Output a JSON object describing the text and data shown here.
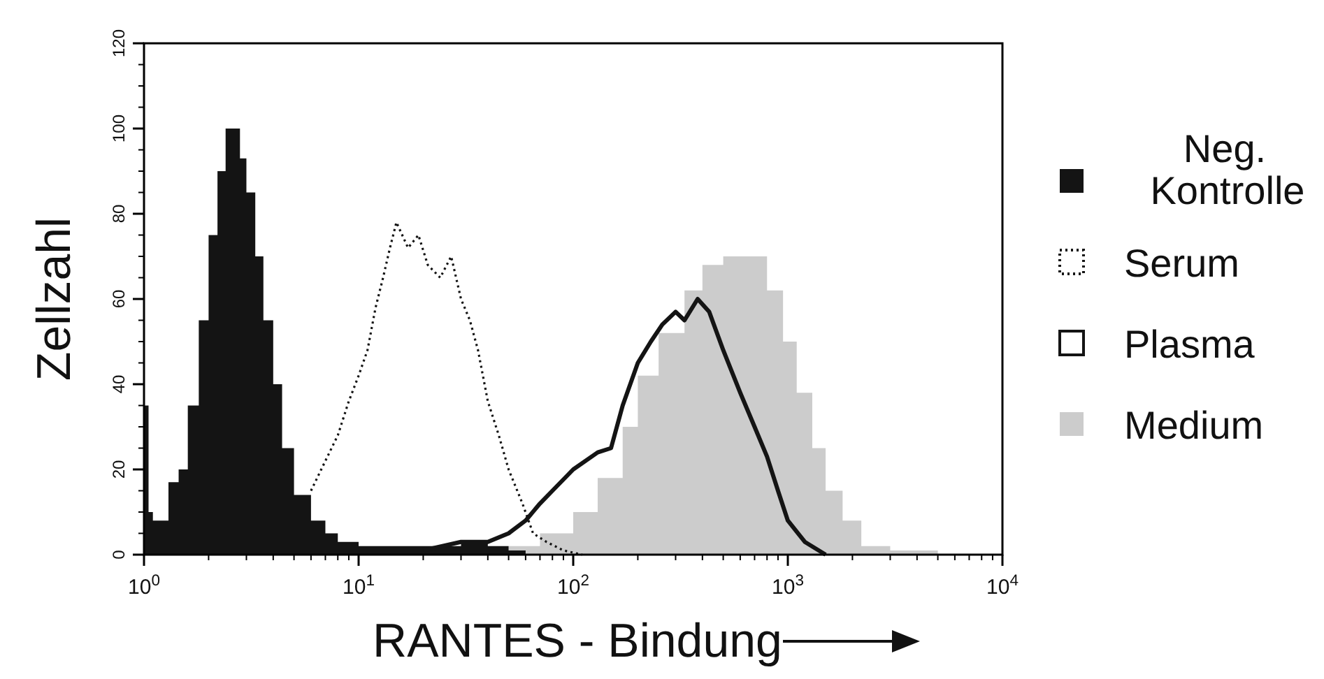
{
  "chart_data": {
    "type": "area",
    "xlabel": "RANTES - Bindung",
    "ylabel": "Zellzahl",
    "log": "x",
    "xlim": [
      1,
      10000
    ],
    "ylim": [
      0,
      120
    ],
    "xticks": [
      {
        "value": 1,
        "label": "10$^{0}$"
      },
      {
        "value": 10,
        "label": "10$^{1}$"
      },
      {
        "value": 100,
        "label": "10$^{2}$"
      },
      {
        "value": 1000,
        "label": "10$^{3}$"
      },
      {
        "value": 10000,
        "label": "10$^{4}$"
      }
    ],
    "yticks": [
      0,
      20,
      40,
      60,
      80,
      100,
      120
    ],
    "legend": "right",
    "grid": false,
    "series": [
      {
        "name": "Neg. Kontrolle",
        "type": "area",
        "color": "#141414",
        "x": [
          1,
          1.05,
          1.1,
          1.3,
          1.45,
          1.6,
          1.8,
          2.0,
          2.2,
          2.4,
          2.6,
          2.8,
          3.0,
          3.3,
          3.6,
          4.0,
          4.4,
          5,
          6,
          7,
          8,
          10,
          15,
          20,
          30,
          40,
          50,
          60
        ],
        "values": [
          35,
          10,
          8,
          17,
          20,
          35,
          55,
          75,
          90,
          100,
          100,
          93,
          85,
          70,
          55,
          40,
          25,
          14,
          8,
          5,
          3,
          2,
          2,
          2,
          3,
          2,
          1,
          0
        ]
      },
      {
        "name": "Serum",
        "type": "line",
        "line_style": "dotted",
        "color": "#141414",
        "x": [
          6,
          7,
          8,
          9,
          10,
          11,
          12,
          13,
          14,
          15,
          17,
          19,
          21,
          24,
          27,
          30,
          33,
          36,
          40,
          45,
          50,
          58,
          65,
          75,
          90,
          110
        ],
        "values": [
          15,
          22,
          28,
          36,
          42,
          48,
          58,
          65,
          72,
          78,
          72,
          75,
          68,
          65,
          70,
          60,
          55,
          48,
          36,
          28,
          20,
          12,
          5,
          3,
          1,
          0
        ]
      },
      {
        "name": "Plasma",
        "type": "line",
        "line_style": "solid",
        "color": "#141414",
        "x": [
          20,
          30,
          40,
          50,
          60,
          70,
          80,
          100,
          130,
          150,
          170,
          200,
          230,
          260,
          300,
          330,
          380,
          430,
          500,
          600,
          700,
          800,
          900,
          1000,
          1200,
          1500
        ],
        "values": [
          1,
          3,
          3,
          5,
          8,
          12,
          15,
          20,
          24,
          25,
          35,
          45,
          50,
          54,
          57,
          55,
          60,
          57,
          48,
          38,
          30,
          23,
          15,
          8,
          3,
          0
        ]
      },
      {
        "name": "Medium",
        "type": "area",
        "color": "#cccccc",
        "x": [
          30,
          50,
          70,
          100,
          130,
          170,
          200,
          250,
          330,
          400,
          500,
          650,
          800,
          950,
          1100,
          1300,
          1500,
          1800,
          2200,
          3000,
          5000
        ],
        "values": [
          0,
          2,
          5,
          10,
          18,
          30,
          42,
          52,
          62,
          68,
          70,
          70,
          62,
          50,
          38,
          25,
          15,
          8,
          2,
          1,
          0
        ]
      }
    ]
  }
}
